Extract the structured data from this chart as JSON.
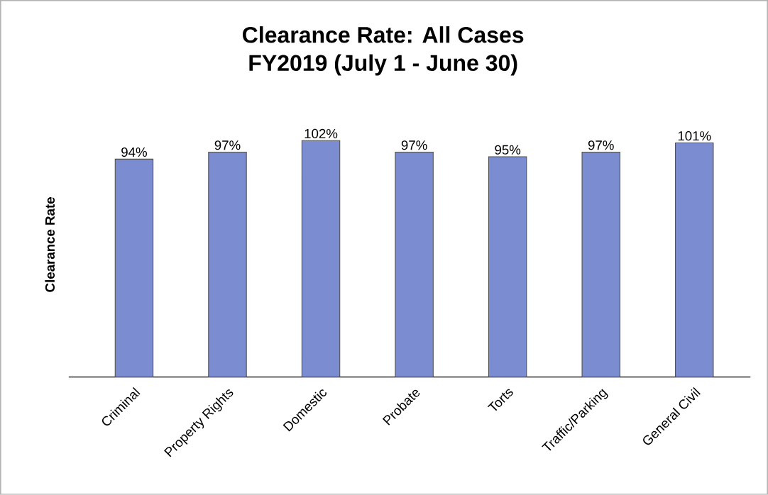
{
  "chart_data": {
    "type": "bar",
    "title": "Clearance Rate: All Cases",
    "subtitle": "FY2019 (July 1 - June 30)",
    "ylabel": "Clearance Rate",
    "categories": [
      "Criminal",
      "Property Rights",
      "Domestic",
      "Probate",
      "Torts",
      "Traffic/Parking",
      "General Civil"
    ],
    "values": [
      94,
      97,
      102,
      97,
      95,
      97,
      101
    ],
    "value_labels": [
      "94%",
      "97%",
      "102%",
      "97%",
      "95%",
      "97%",
      "101%"
    ],
    "color": "#7b8dd0"
  }
}
